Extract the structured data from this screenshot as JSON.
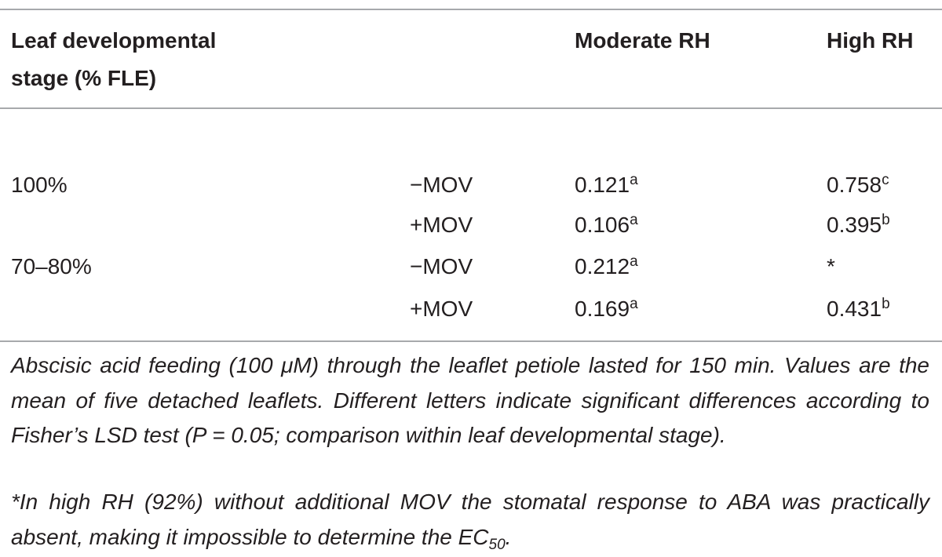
{
  "table": {
    "headers": [
      "Leaf developmental stage (% FLE)",
      "Moderate RH",
      "High RH"
    ],
    "rows": [
      {
        "stage": "100%",
        "treatment": "−MOV",
        "moderate": {
          "value": "0.121",
          "sup": "a"
        },
        "high": {
          "value": "0.758",
          "sup": "c"
        }
      },
      {
        "treatment": "+MOV",
        "moderate": {
          "value": "0.106",
          "sup": "a"
        },
        "high": {
          "value": "0.395",
          "sup": "b"
        }
      },
      {
        "stage": "70–80%",
        "treatment": "−MOV",
        "moderate": {
          "value": "0.212",
          "sup": "a"
        },
        "high": {
          "value": "*"
        }
      },
      {
        "treatment": "+MOV",
        "moderate": {
          "value": "0.169",
          "sup": "a"
        },
        "high": {
          "value": "0.431",
          "sup": "b"
        }
      }
    ]
  },
  "notes": [
    {
      "text": "Abscisic acid feeding (100 μM) through the leaflet petiole lasted for 150 min. Values are the mean of five detached leaflets. Different letters indicate significant differences according to Fisher’s LSD test (P = 0.05; comparison within leaf developmental stage)."
    },
    {
      "text": "*In high RH (92%) without additional MOV the stomatal response to ABA was practically absent, making it impossible to determine the EC",
      "sub": "50",
      "end": "."
    }
  ]
}
